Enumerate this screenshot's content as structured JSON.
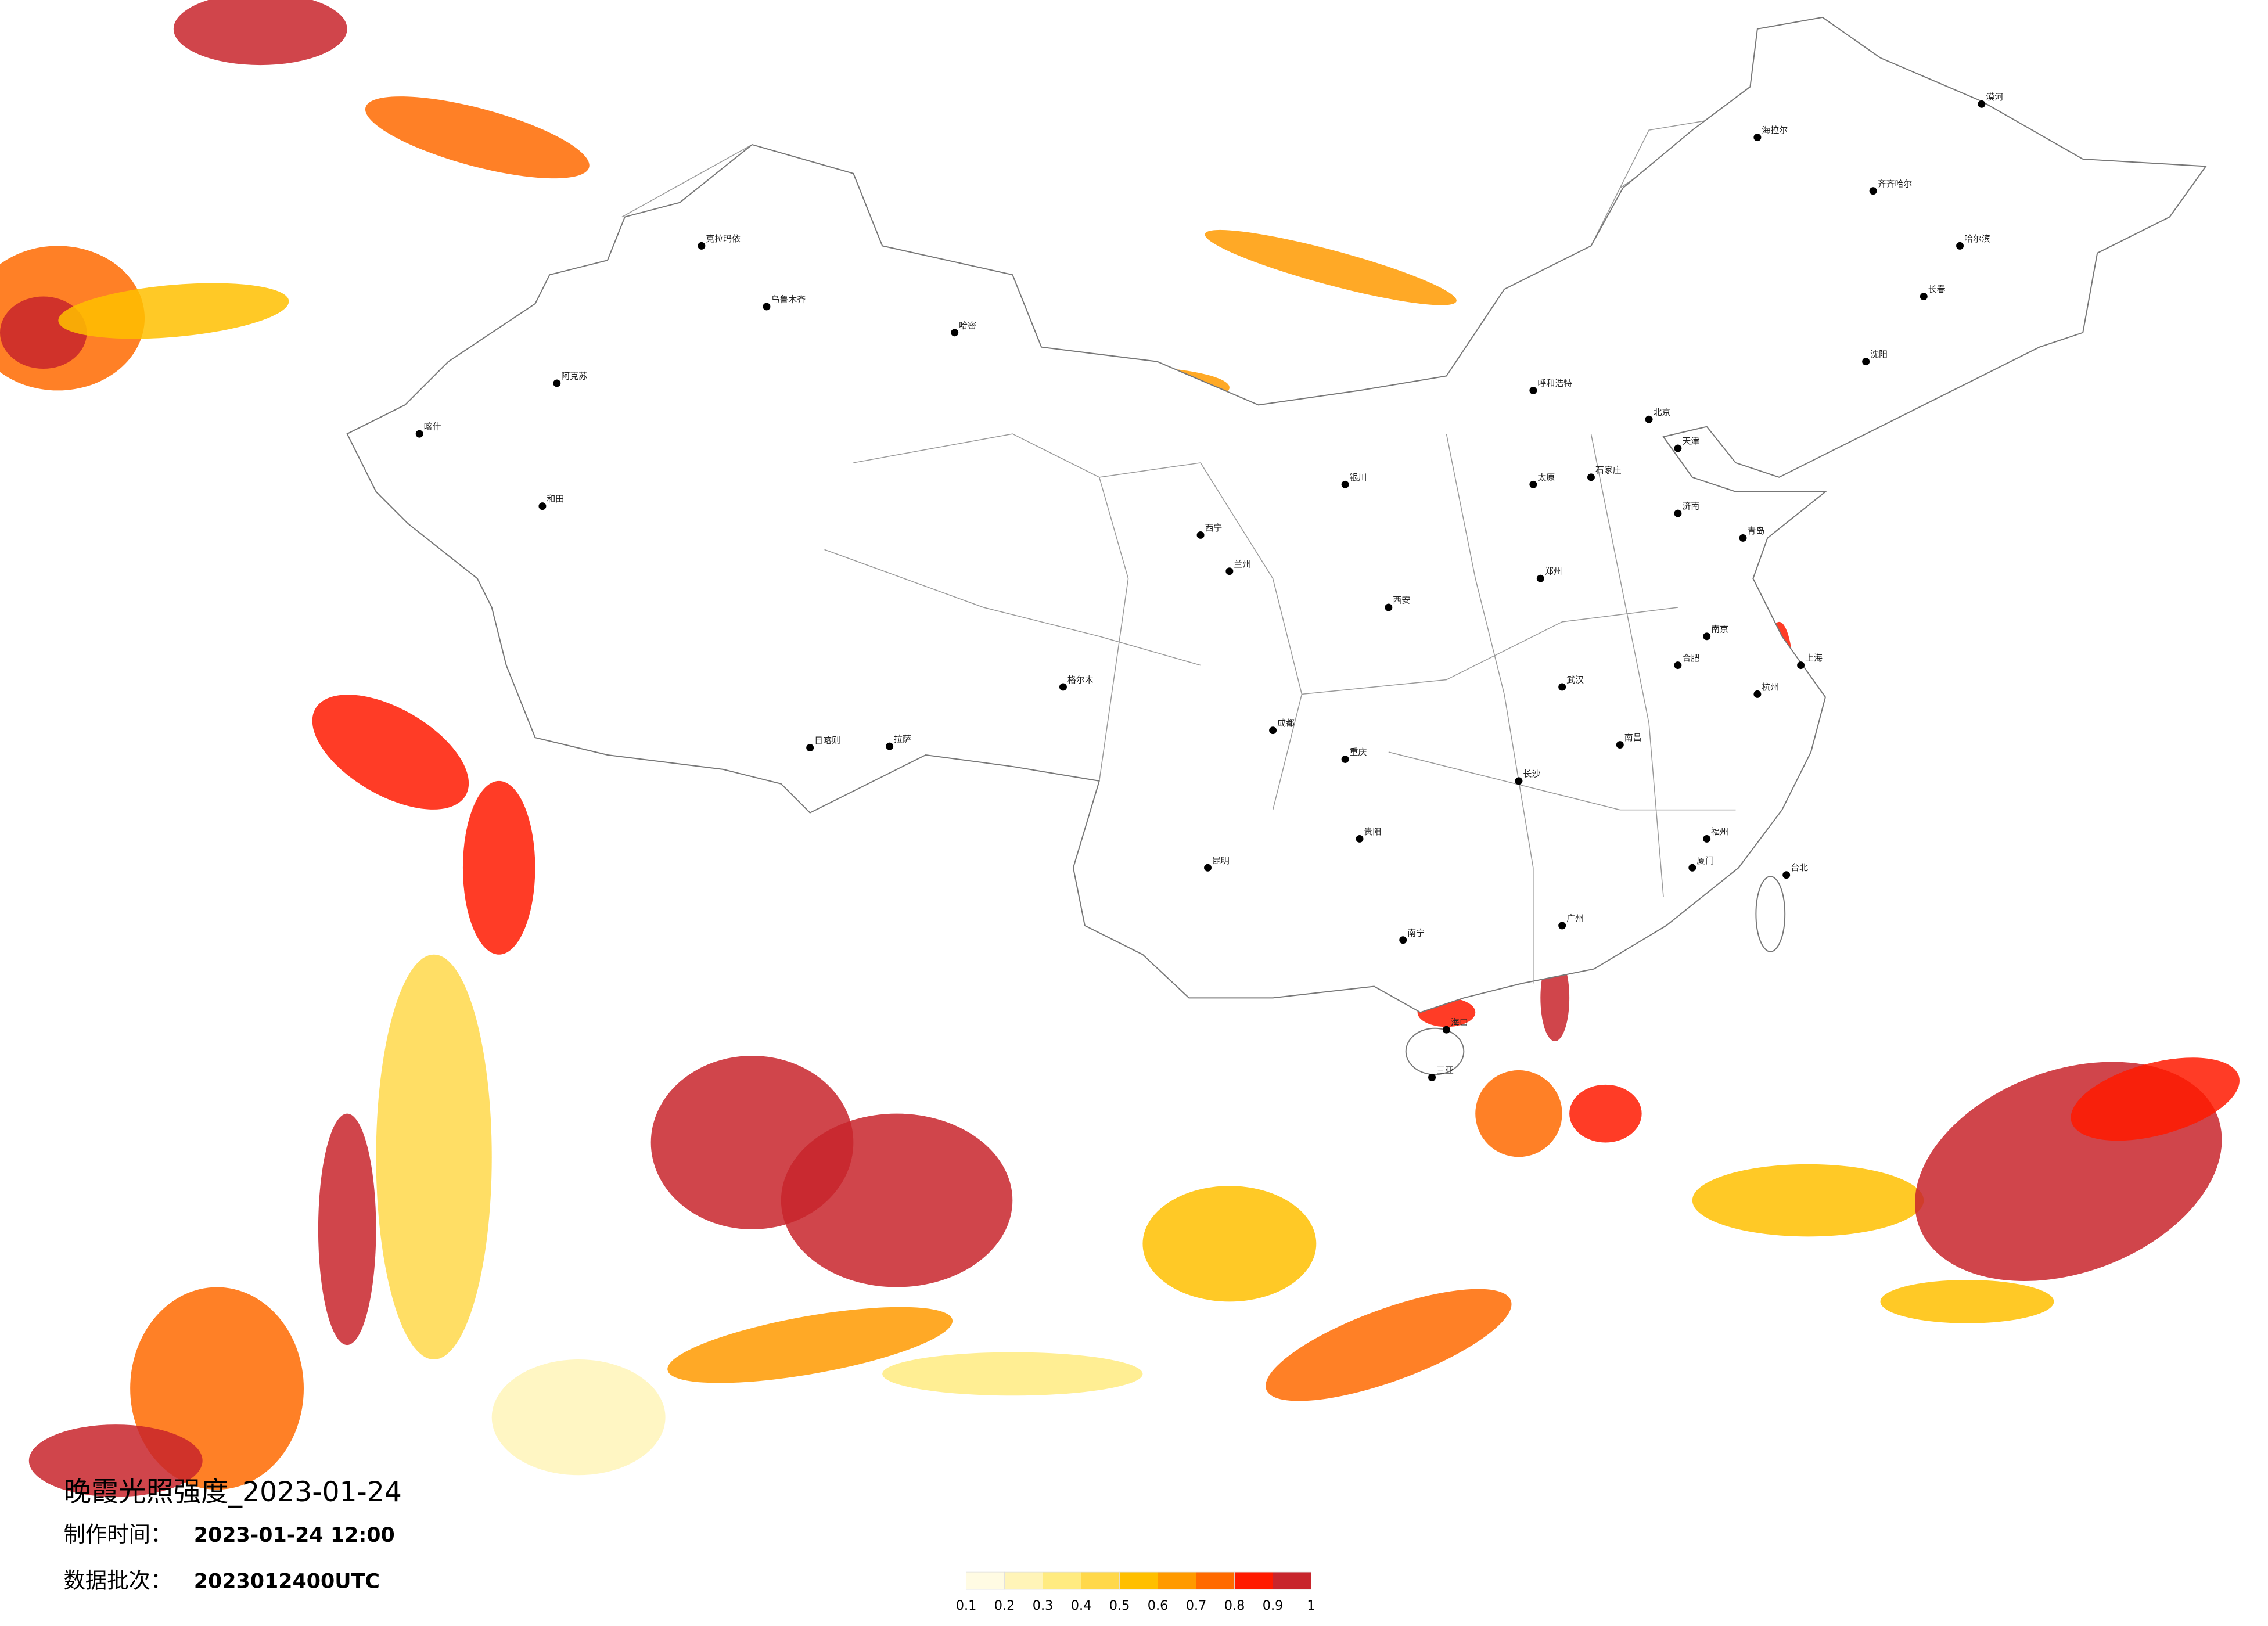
{
  "header": {
    "title": "晚霞光照强度_2023-01-24",
    "made_label": "制作时间：",
    "made_time": "2023-01-24 12:00",
    "batch_label": "数据批次：",
    "batch": "2023012400UTC"
  },
  "legend": {
    "colors": [
      "#fffbe3",
      "#fff4b8",
      "#ffeb80",
      "#ffd84a",
      "#ffbf00",
      "#ff9a00",
      "#ff6a00",
      "#ff1a00",
      "#c8252c"
    ],
    "labels": [
      0.1,
      0.2,
      0.3,
      0.4,
      0.5,
      0.6,
      0.7,
      0.8,
      0.9,
      1
    ]
  },
  "cities": [
    {
      "name": "北京"
    },
    {
      "name": "天津"
    },
    {
      "name": "上海"
    },
    {
      "name": "广州"
    },
    {
      "name": "成都"
    },
    {
      "name": "重庆"
    },
    {
      "name": "武汉"
    },
    {
      "name": "西安"
    },
    {
      "name": "兰州"
    },
    {
      "name": "乌鲁木齐"
    },
    {
      "name": "拉萨"
    },
    {
      "name": "哈尔滨"
    },
    {
      "name": "长春"
    },
    {
      "name": "沈阳"
    },
    {
      "name": "郑州"
    },
    {
      "name": "南京"
    },
    {
      "name": "杭州"
    },
    {
      "name": "福州"
    },
    {
      "name": "昆明"
    },
    {
      "name": "贵阳"
    },
    {
      "name": "南宁"
    },
    {
      "name": "海口"
    },
    {
      "name": "长沙"
    },
    {
      "name": "南昌"
    },
    {
      "name": "合肥"
    },
    {
      "name": "济南"
    },
    {
      "name": "太原"
    },
    {
      "name": "石家庄"
    },
    {
      "name": "呼和浩特"
    },
    {
      "name": "银川"
    },
    {
      "name": "西宁"
    },
    {
      "name": "喀什"
    },
    {
      "name": "和田"
    },
    {
      "name": "台北"
    },
    {
      "name": "齐齐哈尔"
    },
    {
      "name": "海拉尔"
    },
    {
      "name": "克拉玛依"
    },
    {
      "name": "哈密"
    },
    {
      "name": "阿克苏"
    },
    {
      "name": "日喀则"
    },
    {
      "name": "格尔木"
    },
    {
      "name": "漠河"
    },
    {
      "name": "三亚"
    },
    {
      "name": "厦门"
    },
    {
      "name": "青岛"
    }
  ]
}
